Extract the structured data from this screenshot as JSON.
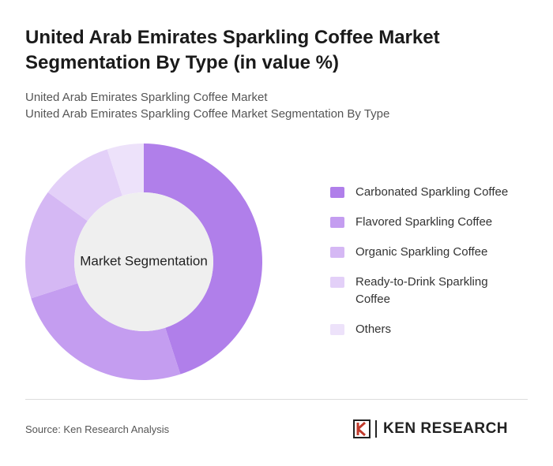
{
  "chart_data": {
    "type": "donut",
    "title": "United Arab Emirates Sparkling Coffee Market Segmentation By Type (in value %)",
    "subtitle": [
      "United Arab Emirates Sparkling Coffee Market",
      "United Arab Emirates Sparkling Coffee Market Segmentation By Type"
    ],
    "center_label": "Market Segmentation",
    "categories": [
      "Carbonated Sparkling Coffee",
      "Flavored Sparkling Coffee",
      "Organic Sparkling Coffee",
      "Ready-to-Drink Sparkling Coffee",
      "Others"
    ],
    "values": [
      45,
      25,
      15,
      10,
      5
    ],
    "colors": [
      "#b07fea",
      "#c49df0",
      "#d5b8f4",
      "#e3d0f8",
      "#ede2fa"
    ],
    "legend": "right"
  },
  "source": "Source: Ken Research Analysis",
  "brand": "KEN RESEARCH"
}
